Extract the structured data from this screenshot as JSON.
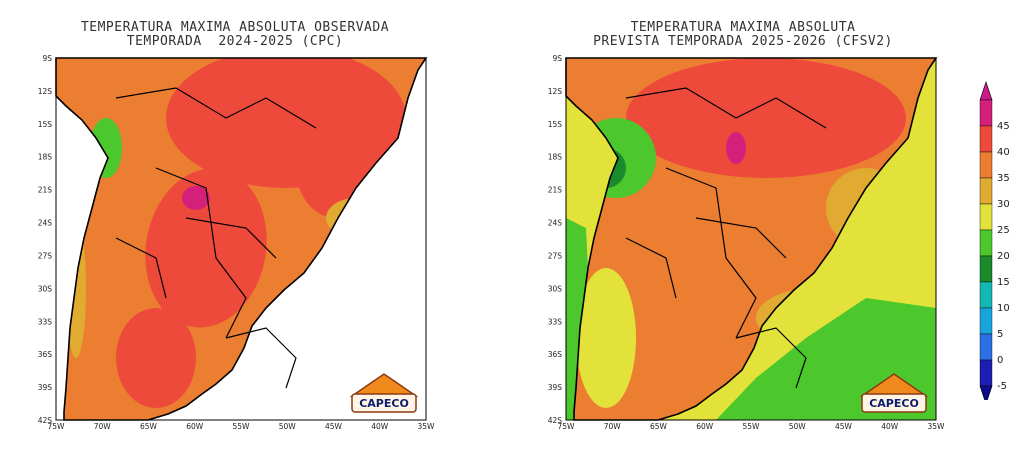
{
  "colors": {
    "c_neg5": "#1e1eb4",
    "c_0": "#2d6fe6",
    "c_5": "#19a5dc",
    "c_10": "#12b9b4",
    "c_15": "#1a8a2a",
    "c_20": "#4cc82c",
    "c_25": "#e2e23a",
    "c_30": "#e0ab30",
    "c_35": "#ec7e32",
    "c_40": "#ee4a3c",
    "c_45": "#d4207a"
  },
  "maps": [
    {
      "title_line1": "TEMPERATURA MAXIMA ABSOLUTA OBSERVADA",
      "title_line2": "TEMPORADA  2024-2025 (CPC)",
      "lat_labels": [
        "9S",
        "12S",
        "15S",
        "18S",
        "21S",
        "24S",
        "27S",
        "30S",
        "33S",
        "36S",
        "39S",
        "42S"
      ],
      "lon_labels": [
        "75W",
        "70W",
        "65W",
        "60W",
        "55W",
        "50W",
        "45W",
        "40W",
        "35W"
      ],
      "ocean": "none",
      "logo_text": "CAPECO"
    },
    {
      "title_line1": "TEMPERATURA MAXIMA ABSOLUTA",
      "title_line2": "PREVISTA TEMPORADA 2025-2026 (CFSV2)",
      "lat_labels": [
        "9S",
        "12S",
        "15S",
        "18S",
        "21S",
        "24S",
        "27S",
        "30S",
        "33S",
        "36S",
        "39S",
        "42S"
      ],
      "lon_labels": [
        "75W",
        "70W",
        "65W",
        "60W",
        "55W",
        "50W",
        "45W",
        "40W",
        "35W"
      ],
      "ocean": "filled",
      "logo_text": "CAPECO"
    }
  ],
  "colorbar": {
    "labels": [
      "45",
      "40",
      "35",
      "30",
      "25",
      "20",
      "15",
      "10",
      "5",
      "0",
      "-5"
    ]
  }
}
